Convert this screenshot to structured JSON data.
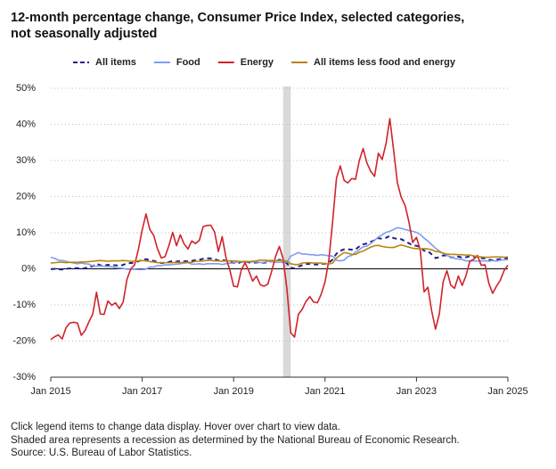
{
  "chart_data": {
    "type": "line",
    "title": [
      "12-month percentage change, Consumer Price Index, selected categories,",
      "not seasonally adjusted"
    ],
    "x": [
      "2015-01",
      "2015-02",
      "2015-03",
      "2015-04",
      "2015-05",
      "2015-06",
      "2015-07",
      "2015-08",
      "2015-09",
      "2015-10",
      "2015-11",
      "2015-12",
      "2016-01",
      "2016-02",
      "2016-03",
      "2016-04",
      "2016-05",
      "2016-06",
      "2016-07",
      "2016-08",
      "2016-09",
      "2016-10",
      "2016-11",
      "2016-12",
      "2017-01",
      "2017-02",
      "2017-03",
      "2017-04",
      "2017-05",
      "2017-06",
      "2017-07",
      "2017-08",
      "2017-09",
      "2017-10",
      "2017-11",
      "2017-12",
      "2018-01",
      "2018-02",
      "2018-03",
      "2018-04",
      "2018-05",
      "2018-06",
      "2018-07",
      "2018-08",
      "2018-09",
      "2018-10",
      "2018-11",
      "2018-12",
      "2019-01",
      "2019-02",
      "2019-03",
      "2019-04",
      "2019-05",
      "2019-06",
      "2019-07",
      "2019-08",
      "2019-09",
      "2019-10",
      "2019-11",
      "2019-12",
      "2020-01",
      "2020-02",
      "2020-03",
      "2020-04",
      "2020-05",
      "2020-06",
      "2020-07",
      "2020-08",
      "2020-09",
      "2020-10",
      "2020-11",
      "2020-12",
      "2021-01",
      "2021-02",
      "2021-03",
      "2021-04",
      "2021-05",
      "2021-06",
      "2021-07",
      "2021-08",
      "2021-09",
      "2021-10",
      "2021-11",
      "2021-12",
      "2022-01",
      "2022-02",
      "2022-03",
      "2022-04",
      "2022-05",
      "2022-06",
      "2022-07",
      "2022-08",
      "2022-09",
      "2022-10",
      "2022-11",
      "2022-12",
      "2023-01",
      "2023-02",
      "2023-03",
      "2023-04",
      "2023-05",
      "2023-06",
      "2023-07",
      "2023-08",
      "2023-09",
      "2023-10",
      "2023-11",
      "2023-12",
      "2024-01",
      "2024-02",
      "2024-03",
      "2024-04",
      "2024-05",
      "2024-06",
      "2024-07",
      "2024-08",
      "2024-09",
      "2024-10",
      "2024-11",
      "2024-12",
      "2025-01"
    ],
    "series": [
      {
        "name": "All items",
        "color": "#1f1f8f",
        "line_style": "dashed",
        "values": [
          -0.1,
          0.0,
          -0.1,
          -0.2,
          0.0,
          0.1,
          0.2,
          0.2,
          0.0,
          0.2,
          0.5,
          0.7,
          1.4,
          1.0,
          0.9,
          1.1,
          1.0,
          1.0,
          0.8,
          1.1,
          1.5,
          1.6,
          1.7,
          2.1,
          2.5,
          2.7,
          2.4,
          2.2,
          1.9,
          1.6,
          1.7,
          1.9,
          2.2,
          2.0,
          2.2,
          2.1,
          2.1,
          2.2,
          2.4,
          2.5,
          2.8,
          2.9,
          2.9,
          2.7,
          2.3,
          2.5,
          2.2,
          1.9,
          1.6,
          1.5,
          1.9,
          2.0,
          1.8,
          1.6,
          1.8,
          1.7,
          1.7,
          1.8,
          2.1,
          2.3,
          2.5,
          2.3,
          1.5,
          0.3,
          0.1,
          0.6,
          1.0,
          1.3,
          1.4,
          1.2,
          1.2,
          1.4,
          1.4,
          1.7,
          2.6,
          4.2,
          5.0,
          5.4,
          5.4,
          5.3,
          5.4,
          6.2,
          6.8,
          7.0,
          7.5,
          7.9,
          8.5,
          8.3,
          8.6,
          9.1,
          8.5,
          8.3,
          8.2,
          7.7,
          7.1,
          6.5,
          6.4,
          6.0,
          5.0,
          4.9,
          4.0,
          3.0,
          3.2,
          3.7,
          3.7,
          3.2,
          3.1,
          3.4,
          3.1,
          3.2,
          3.5,
          3.4,
          3.3,
          3.0,
          2.9,
          2.5,
          2.4,
          2.6,
          2.7,
          2.9,
          3.0
        ]
      },
      {
        "name": "Food",
        "color": "#7f9cf0",
        "line_style": "solid",
        "values": [
          3.2,
          2.9,
          2.4,
          2.3,
          2.1,
          1.8,
          1.6,
          1.4,
          1.6,
          1.4,
          1.3,
          0.8,
          0.7,
          0.8,
          0.7,
          0.6,
          0.6,
          0.3,
          0.2,
          0.1,
          -0.1,
          -0.1,
          -0.1,
          -0.2,
          -0.2,
          -0.1,
          0.5,
          0.5,
          0.9,
          0.9,
          1.1,
          1.1,
          1.2,
          1.3,
          1.4,
          1.6,
          1.7,
          1.3,
          1.3,
          1.4,
          1.2,
          1.4,
          1.4,
          1.4,
          1.4,
          1.2,
          1.4,
          1.6,
          1.6,
          2.0,
          1.9,
          1.8,
          2.0,
          1.9,
          1.9,
          1.7,
          1.8,
          2.1,
          2.0,
          1.8,
          1.8,
          1.8,
          1.9,
          3.5,
          4.0,
          4.5,
          4.1,
          4.1,
          3.9,
          3.9,
          3.7,
          3.9,
          3.8,
          3.6,
          3.5,
          2.4,
          2.2,
          2.4,
          3.4,
          3.7,
          4.6,
          5.3,
          6.1,
          6.3,
          7.0,
          7.9,
          8.8,
          9.4,
          10.1,
          10.4,
          10.9,
          11.4,
          11.2,
          10.9,
          10.6,
          10.4,
          10.1,
          9.5,
          8.5,
          7.7,
          6.7,
          5.7,
          4.9,
          4.3,
          3.7,
          3.3,
          2.9,
          2.7,
          2.6,
          2.2,
          2.2,
          2.2,
          2.1,
          2.2,
          2.2,
          2.1,
          2.3,
          2.1,
          2.4,
          2.5,
          2.5
        ]
      },
      {
        "name": "Energy",
        "color": "#d0232b",
        "line_style": "solid",
        "values": [
          -19.6,
          -18.8,
          -18.3,
          -19.4,
          -16.3,
          -15.0,
          -14.8,
          -15.0,
          -18.4,
          -17.1,
          -14.7,
          -12.6,
          -6.5,
          -12.5,
          -12.6,
          -8.9,
          -10.1,
          -9.4,
          -11.0,
          -9.2,
          -2.9,
          0.0,
          1.1,
          5.4,
          10.8,
          15.2,
          10.9,
          9.3,
          5.6,
          3.0,
          3.4,
          6.4,
          10.1,
          6.4,
          9.4,
          6.9,
          5.5,
          7.7,
          7.0,
          7.9,
          11.7,
          12.0,
          12.1,
          10.2,
          4.8,
          8.9,
          3.1,
          -0.3,
          -4.8,
          -5.0,
          -0.4,
          1.7,
          -0.6,
          -3.4,
          -2.0,
          -4.4,
          -4.8,
          -4.2,
          -0.6,
          3.4,
          6.2,
          2.8,
          -5.7,
          -17.7,
          -18.9,
          -12.6,
          -11.2,
          -9.0,
          -7.7,
          -9.2,
          -9.4,
          -7.0,
          -3.6,
          2.4,
          13.2,
          25.1,
          28.5,
          24.5,
          23.8,
          25.0,
          24.8,
          30.0,
          33.3,
          29.3,
          27.0,
          25.6,
          32.0,
          30.3,
          34.6,
          41.6,
          32.9,
          23.8,
          19.8,
          17.6,
          13.1,
          7.3,
          8.7,
          5.2,
          -6.4,
          -5.1,
          -11.7,
          -16.7,
          -12.5,
          -3.6,
          -0.5,
          -4.5,
          -5.4,
          -2.0,
          -4.6,
          -1.9,
          2.1,
          2.6,
          3.7,
          1.0,
          1.1,
          -4.0,
          -6.8,
          -4.8,
          -3.2,
          -0.5,
          1.0
        ]
      },
      {
        "name": "All items less food and energy",
        "color": "#b8860b",
        "line_style": "solid",
        "values": [
          1.6,
          1.7,
          1.8,
          1.8,
          1.7,
          1.8,
          1.8,
          1.8,
          1.9,
          1.9,
          2.0,
          2.1,
          2.2,
          2.3,
          2.2,
          2.1,
          2.2,
          2.2,
          2.2,
          2.3,
          2.2,
          2.1,
          2.1,
          2.2,
          2.3,
          2.2,
          2.0,
          1.9,
          1.7,
          1.7,
          1.7,
          1.7,
          1.7,
          1.8,
          1.7,
          1.8,
          1.8,
          1.8,
          2.1,
          2.1,
          2.2,
          2.3,
          2.4,
          2.2,
          2.2,
          2.1,
          2.2,
          2.2,
          2.2,
          2.1,
          2.0,
          2.1,
          2.0,
          2.1,
          2.2,
          2.4,
          2.4,
          2.3,
          2.3,
          2.3,
          2.3,
          2.4,
          2.1,
          1.4,
          1.2,
          1.2,
          1.6,
          1.7,
          1.7,
          1.6,
          1.6,
          1.6,
          1.4,
          1.3,
          1.6,
          3.0,
          3.8,
          4.5,
          4.3,
          4.0,
          4.0,
          4.6,
          4.9,
          5.5,
          6.0,
          6.4,
          6.5,
          6.2,
          6.0,
          5.9,
          5.9,
          6.3,
          6.6,
          6.3,
          6.0,
          5.7,
          5.6,
          5.5,
          5.6,
          5.5,
          5.3,
          4.8,
          4.7,
          4.3,
          4.1,
          4.0,
          4.0,
          3.9,
          3.9,
          3.8,
          3.8,
          3.6,
          3.4,
          3.3,
          3.2,
          3.2,
          3.3,
          3.3,
          3.3,
          3.2,
          3.3
        ]
      }
    ],
    "xlim": [
      "2015-01",
      "2025-01"
    ],
    "xticks": [
      {
        "value": "2015-01",
        "label": "Jan 2015"
      },
      {
        "value": "2017-01",
        "label": "Jan 2017"
      },
      {
        "value": "2019-01",
        "label": "Jan 2019"
      },
      {
        "value": "2021-01",
        "label": "Jan 2021"
      },
      {
        "value": "2023-01",
        "label": "Jan 2023"
      },
      {
        "value": "2025-01",
        "label": "Jan 2025"
      }
    ],
    "ylim": [
      -30,
      50
    ],
    "yticks": [
      {
        "value": -30,
        "label": "-30%"
      },
      {
        "value": -20,
        "label": "-20%"
      },
      {
        "value": -10,
        "label": "-10%"
      },
      {
        "value": 0,
        "label": "0%"
      },
      {
        "value": 10,
        "label": "10%"
      },
      {
        "value": 20,
        "label": "20%"
      },
      {
        "value": 30,
        "label": "30%"
      },
      {
        "value": 40,
        "label": "40%"
      },
      {
        "value": 50,
        "label": "50%"
      }
    ],
    "grid": true,
    "recession": [
      "2020-02",
      "2020-04"
    ],
    "notes": [
      "Click legend items to change data display. Hover over chart to view data.",
      "Shaded area represents a recession as determined by the National Bureau of Economic Research.",
      "Source: U.S. Bureau of Labor Statistics."
    ]
  }
}
